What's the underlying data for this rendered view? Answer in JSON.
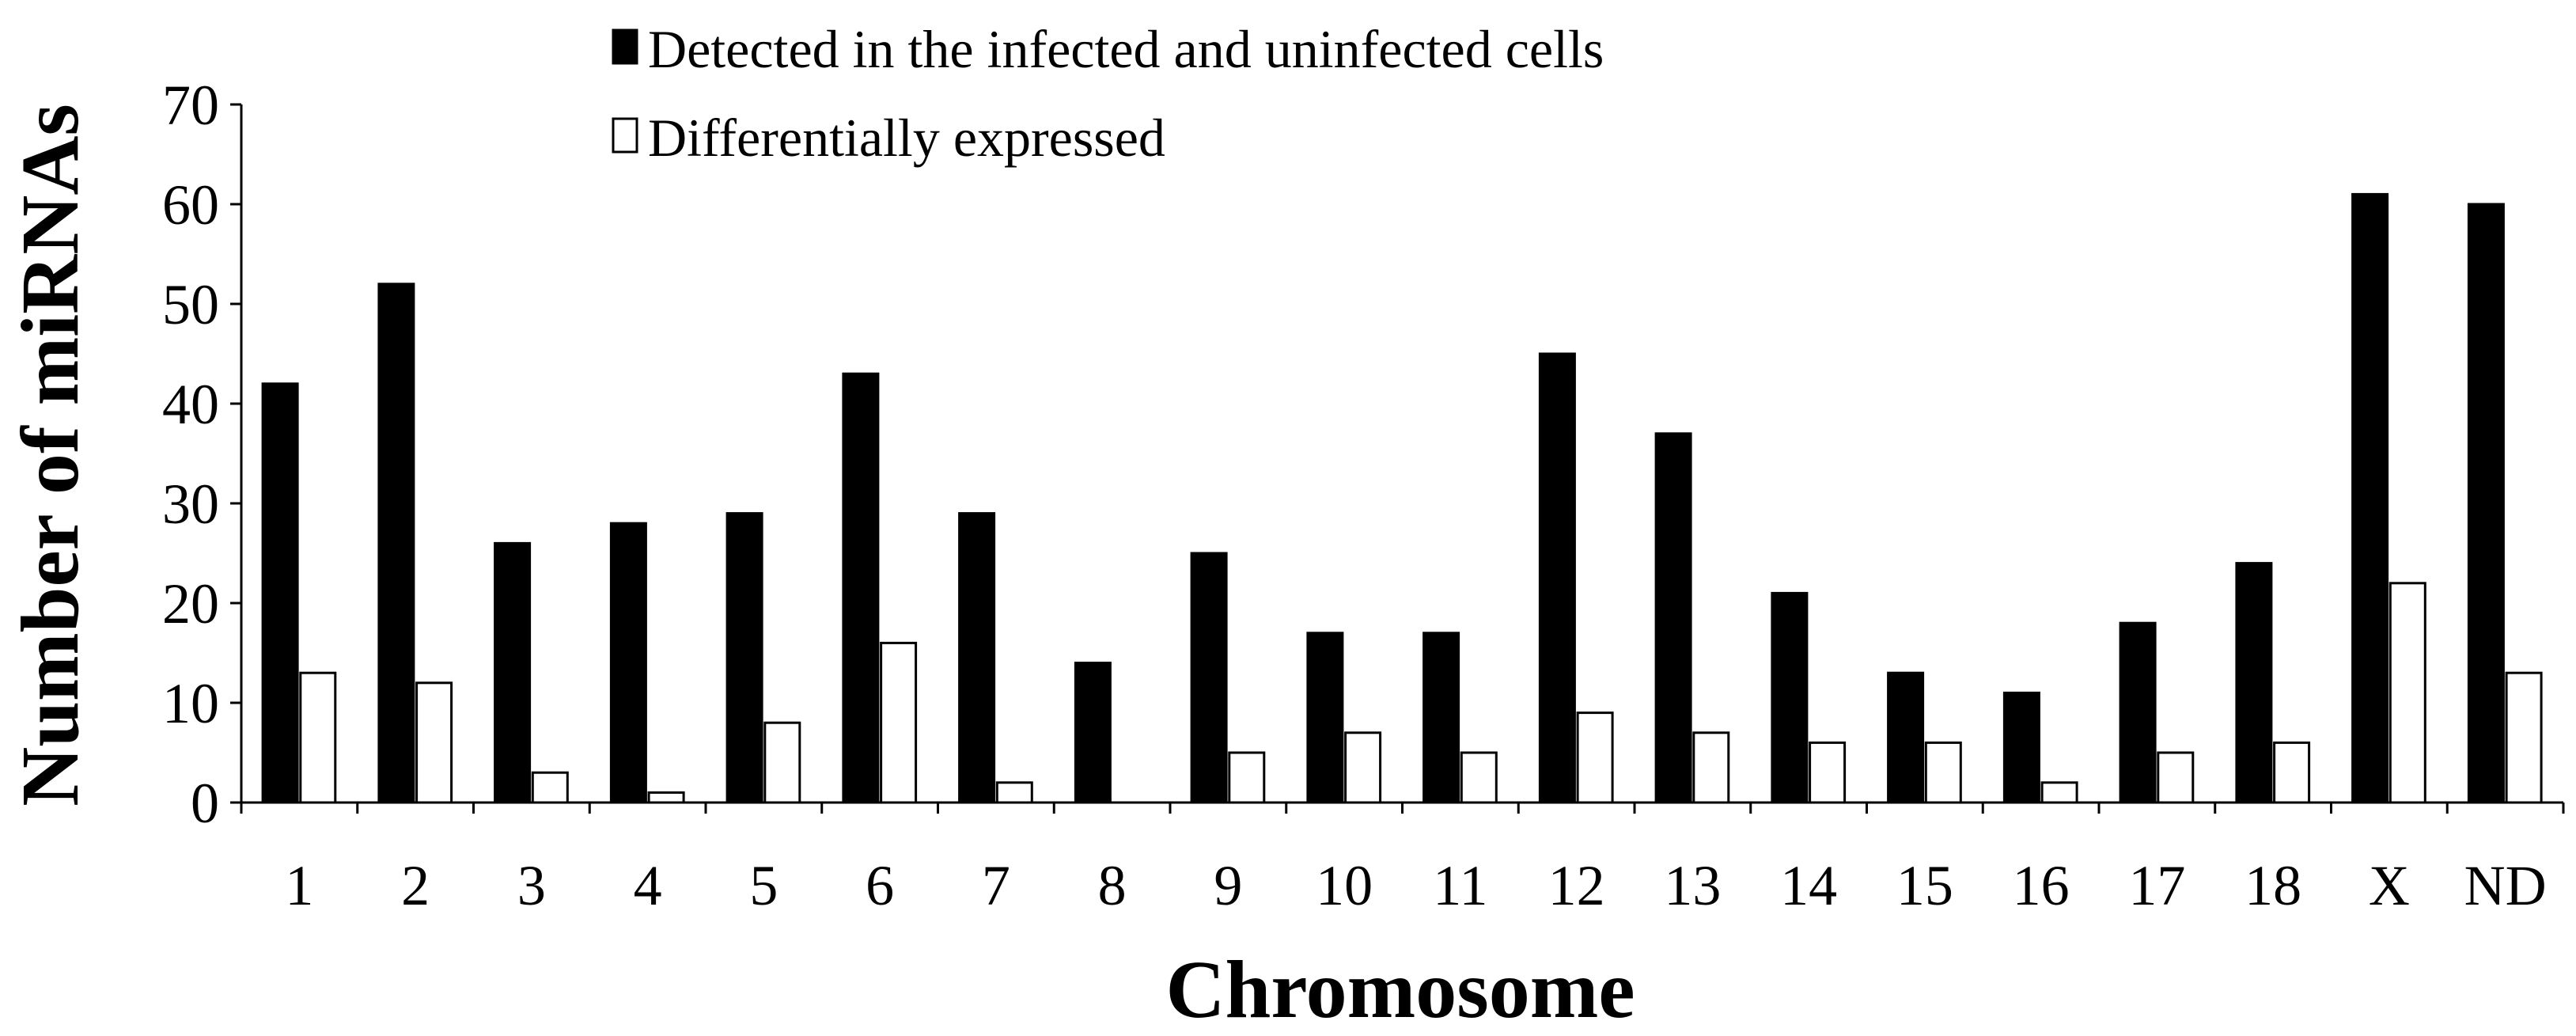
{
  "chart_data": {
    "type": "bar",
    "title": "",
    "xlabel": "Chromosome",
    "ylabel": "Number of miRNAs",
    "ylim": [
      0,
      70
    ],
    "yticks": [
      0,
      10,
      20,
      30,
      40,
      50,
      60,
      70
    ],
    "grid": false,
    "legend_position": "top",
    "categories": [
      "1",
      "2",
      "3",
      "4",
      "5",
      "6",
      "7",
      "8",
      "9",
      "10",
      "11",
      "12",
      "13",
      "14",
      "15",
      "16",
      "17",
      "18",
      "X",
      "ND"
    ],
    "series": [
      {
        "name": "Detected in the infected and uninfected cells",
        "color": "#000000",
        "values": [
          42,
          52,
          26,
          28,
          29,
          43,
          29,
          14,
          25,
          17,
          17,
          45,
          37,
          21,
          13,
          11,
          18,
          24,
          61,
          60
        ]
      },
      {
        "name": "Differentially expressed",
        "color": "#ffffff",
        "values": [
          13,
          12,
          3,
          1,
          8,
          16,
          2,
          0,
          5,
          7,
          5,
          9,
          7,
          6,
          6,
          2,
          5,
          6,
          22,
          13
        ]
      }
    ]
  }
}
